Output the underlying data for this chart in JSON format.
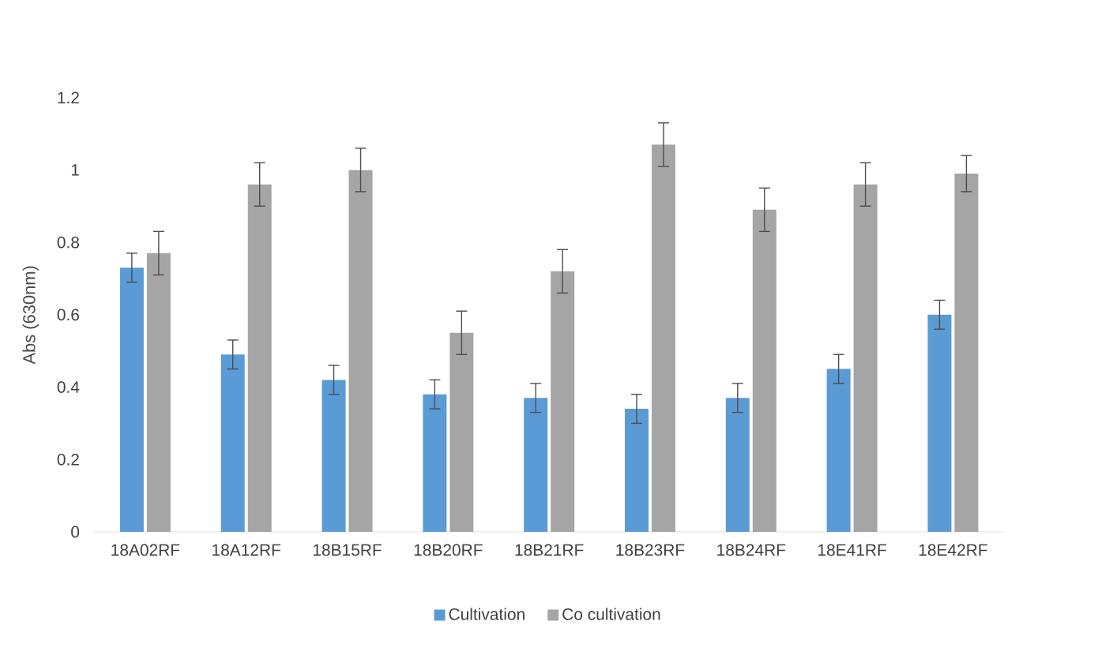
{
  "chart_data": {
    "type": "bar",
    "ylabel": "Abs (630nm)",
    "categories": [
      "18A02RF",
      "18A12RF",
      "18B15RF",
      "18B20RF",
      "18B21RF",
      "18B23RF",
      "18B24RF",
      "18E41RF",
      "18E42RF"
    ],
    "series": [
      {
        "name": "Cultivation",
        "color": "#5b9bd5",
        "values": [
          0.73,
          0.49,
          0.42,
          0.38,
          0.37,
          0.34,
          0.37,
          0.45,
          0.6
        ],
        "errors": [
          0.04,
          0.04,
          0.04,
          0.04,
          0.04,
          0.04,
          0.04,
          0.04,
          0.04
        ]
      },
      {
        "name": "Co cultivation",
        "color": "#a5a5a5",
        "values": [
          0.77,
          0.96,
          1.0,
          0.55,
          0.72,
          1.07,
          0.89,
          0.96,
          0.99
        ],
        "errors": [
          0.06,
          0.06,
          0.06,
          0.06,
          0.06,
          0.06,
          0.06,
          0.06,
          0.05
        ]
      }
    ],
    "ylim": [
      0,
      1.2
    ],
    "yticks": [
      0,
      0.2,
      0.4,
      0.6,
      0.8,
      1,
      1.2
    ],
    "legend": "bottom"
  }
}
